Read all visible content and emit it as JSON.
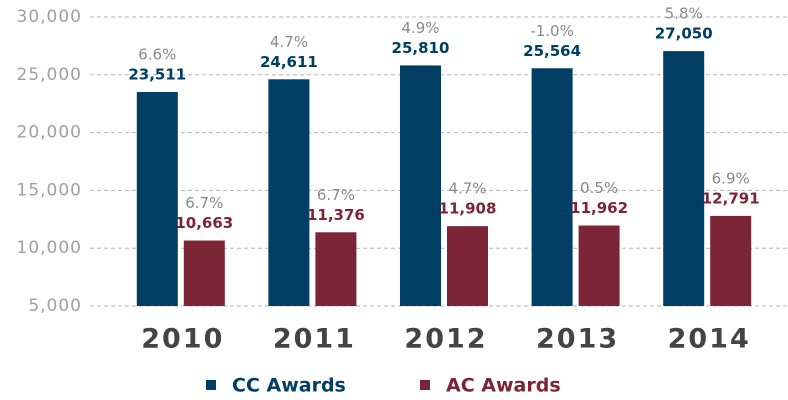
{
  "chart_data": {
    "type": "bar",
    "categories": [
      "2010",
      "2011",
      "2012",
      "2013",
      "2014"
    ],
    "series": [
      {
        "name": "CC Awards",
        "color": "#003f63",
        "values": [
          23511,
          24611,
          25810,
          25564,
          27050
        ],
        "value_labels": [
          "23,511",
          "24,611",
          "25,810",
          "25,564",
          "27,050"
        ],
        "growth_labels": [
          "6.6%",
          "4.7%",
          "4.9%",
          "-1.0%",
          "5.8%"
        ]
      },
      {
        "name": "AC Awards",
        "color": "#7b2536",
        "values": [
          10663,
          11376,
          11908,
          11962,
          12791
        ],
        "value_labels": [
          "10,663",
          "11,376",
          "11,908",
          "11,962",
          "12,791"
        ],
        "growth_labels": [
          "6.7%",
          "6.7%",
          "4.7%",
          "0.5%",
          "6.9%"
        ]
      }
    ],
    "ylim": [
      5000,
      30000
    ],
    "yticks": [
      {
        "value": 5000,
        "label": "5,000"
      },
      {
        "value": 10000,
        "label": "10,000"
      },
      {
        "value": 15000,
        "label": "15,000"
      },
      {
        "value": 20000,
        "label": "20,000"
      },
      {
        "value": 25000,
        "label": "25,000"
      },
      {
        "value": 30000,
        "label": "30,000"
      }
    ],
    "grid": true
  }
}
